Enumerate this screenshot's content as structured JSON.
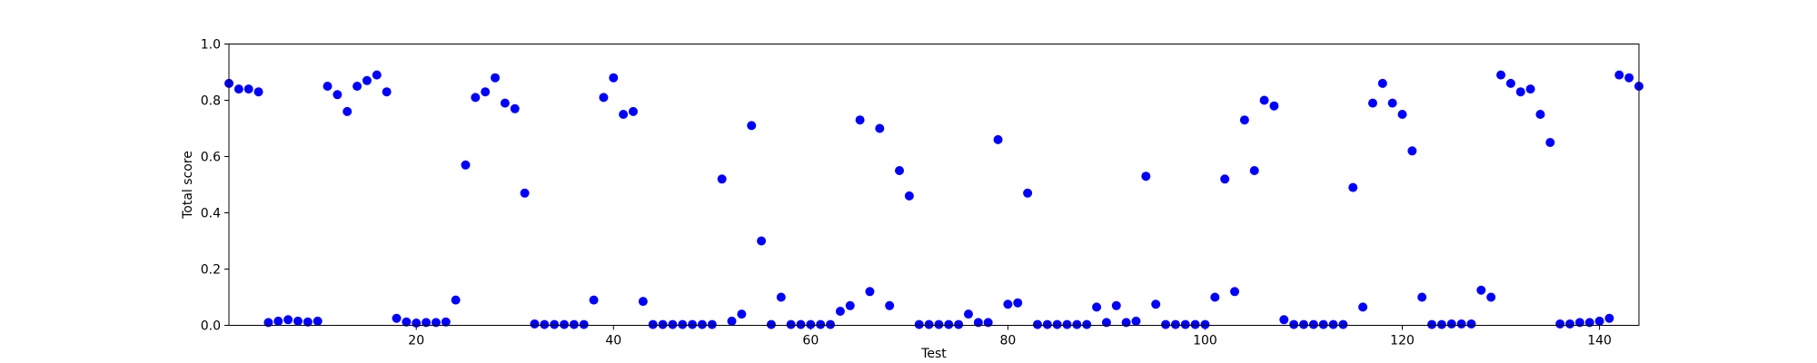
{
  "chart_data": {
    "type": "scatter",
    "title": "",
    "xlabel": "Test",
    "ylabel": "Total score",
    "xlim": [
      1,
      144
    ],
    "ylim": [
      0.0,
      1.0
    ],
    "grid": false,
    "legend": "none",
    "marker_color": "#0000ff",
    "xticks": [
      20,
      40,
      60,
      80,
      100,
      120,
      140
    ],
    "xtick_labels": [
      "20",
      "40",
      "60",
      "80",
      "100",
      "120",
      "140"
    ],
    "yticks": [
      0.0,
      0.2,
      0.4,
      0.6,
      0.8,
      1.0
    ],
    "ytick_labels": [
      "0.0",
      "0.2",
      "0.4",
      "0.6",
      "0.8",
      "1.0"
    ],
    "series": [
      {
        "x": [
          1,
          2,
          3,
          4,
          5,
          6,
          7,
          8,
          9,
          10,
          11,
          12,
          13,
          14,
          15,
          16,
          17,
          18,
          19,
          20,
          21,
          22,
          23,
          24,
          25,
          26,
          27,
          28,
          29,
          30,
          31,
          32,
          33,
          34,
          35,
          36,
          37,
          38,
          39,
          40,
          41,
          42,
          43,
          44,
          45,
          46,
          47,
          48,
          49,
          50,
          51,
          52,
          53,
          54,
          55,
          56,
          57,
          58,
          59,
          60,
          61,
          62,
          63,
          64,
          65,
          66,
          67,
          68,
          69,
          70,
          71,
          72,
          73,
          74,
          75,
          76,
          77,
          78,
          79,
          80,
          81,
          82,
          83,
          84,
          85,
          86,
          87,
          88,
          89,
          90,
          91,
          92,
          93,
          94,
          95,
          96,
          97,
          98,
          99,
          100,
          101,
          102,
          103,
          104,
          105,
          106,
          107,
          108,
          109,
          110,
          111,
          112,
          113,
          114,
          115,
          116,
          117,
          118,
          119,
          120,
          121,
          122,
          123,
          124,
          125,
          126,
          127,
          128,
          129,
          130,
          131,
          132,
          133,
          134,
          135,
          136,
          137,
          138,
          139,
          140,
          141,
          142,
          143,
          144
        ],
        "y": [
          0.86,
          0.84,
          0.84,
          0.83,
          0.01,
          0.015,
          0.02,
          0.015,
          0.012,
          0.015,
          0.85,
          0.82,
          0.76,
          0.85,
          0.87,
          0.89,
          0.83,
          0.025,
          0.012,
          0.008,
          0.01,
          0.01,
          0.012,
          0.09,
          0.57,
          0.81,
          0.83,
          0.88,
          0.79,
          0.77,
          0.47,
          0.005,
          0.003,
          0.003,
          0.003,
          0.003,
          0.003,
          0.09,
          0.81,
          0.88,
          0.75,
          0.76,
          0.085,
          0.003,
          0.003,
          0.003,
          0.003,
          0.003,
          0.003,
          0.003,
          0.52,
          0.015,
          0.04,
          0.71,
          0.3,
          0.003,
          0.1,
          0.003,
          0.003,
          0.003,
          0.003,
          0.003,
          0.05,
          0.07,
          0.73,
          0.12,
          0.7,
          0.07,
          0.55,
          0.46,
          0.003,
          0.003,
          0.003,
          0.003,
          0.003,
          0.04,
          0.01,
          0.01,
          0.66,
          0.075,
          0.08,
          0.47,
          0.003,
          0.003,
          0.003,
          0.003,
          0.003,
          0.003,
          0.065,
          0.01,
          0.07,
          0.01,
          0.015,
          0.53,
          0.075,
          0.003,
          0.003,
          0.003,
          0.003,
          0.003,
          0.1,
          0.52,
          0.12,
          0.73,
          0.55,
          0.8,
          0.78,
          0.02,
          0.003,
          0.003,
          0.003,
          0.003,
          0.003,
          0.003,
          0.49,
          0.065,
          0.79,
          0.86,
          0.79,
          0.75,
          0.62,
          0.1,
          0.003,
          0.003,
          0.005,
          0.005,
          0.005,
          0.125,
          0.1,
          0.89,
          0.86,
          0.83,
          0.84,
          0.75,
          0.65,
          0.005,
          0.005,
          0.01,
          0.01,
          0.015,
          0.025,
          0.89,
          0.88,
          0.85
        ]
      }
    ]
  }
}
